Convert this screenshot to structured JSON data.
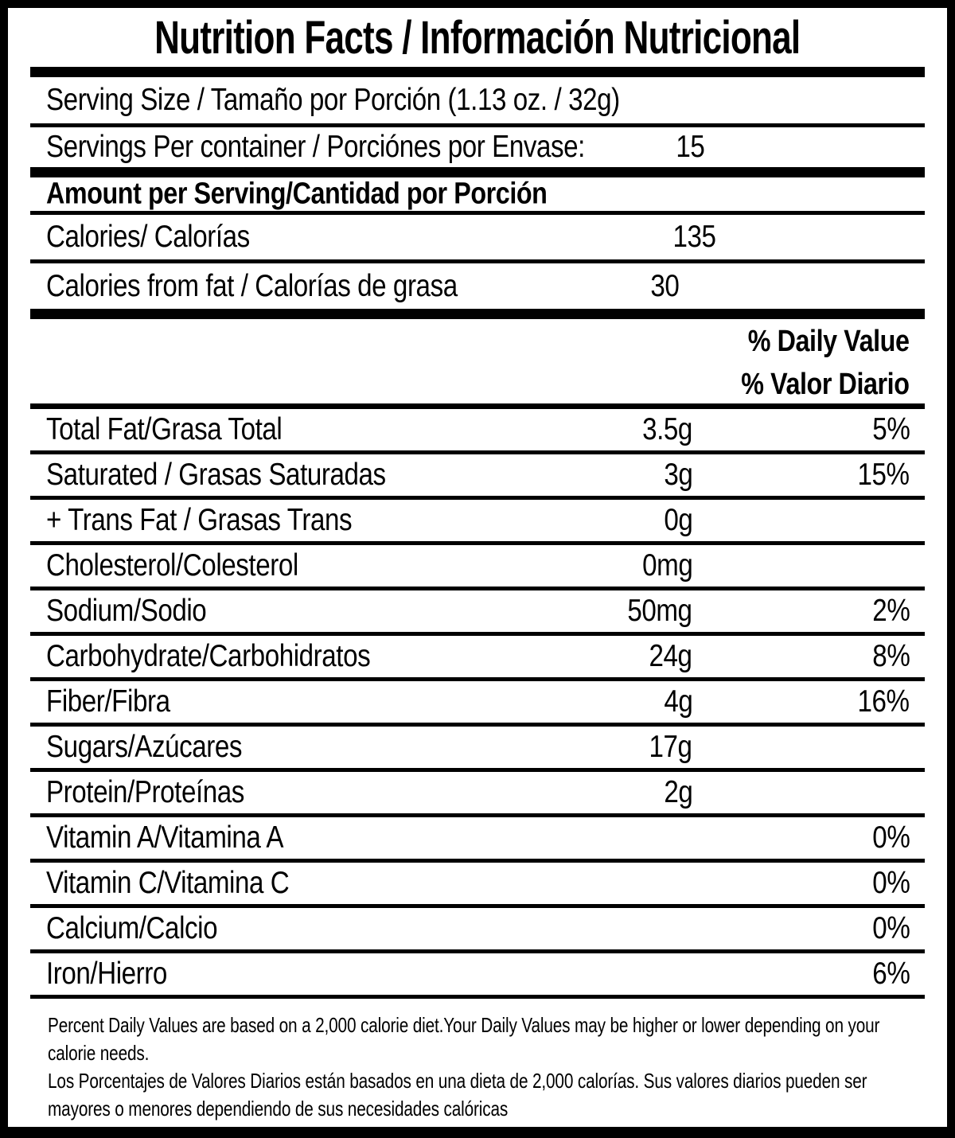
{
  "colors": {
    "ink": "#000000",
    "background": "#ffffff"
  },
  "label": {
    "title": "Nutrition Facts / Información Nutricional",
    "serving_size": "Serving Size / Tamaño por Porción (1.13 oz. / 32g)",
    "servings_per_container": {
      "label": "Servings Per container / Porciónes por Envase:",
      "value": "15"
    },
    "amount_per_serving_header": "Amount per Serving/Cantidad por Porción",
    "calories": {
      "label": "Calories/ Calorías",
      "value": "135"
    },
    "calories_from_fat": {
      "label": "Calories from fat / Calorías de grasa",
      "value": "30"
    },
    "daily_value_header": {
      "line1": "% Daily Value",
      "line2": "% Valor Diario"
    },
    "nutrients": [
      {
        "label": "Total Fat/Grasa Total",
        "amount": "3.5g",
        "dv": "5%"
      },
      {
        "label": "Saturated / Grasas Saturadas",
        "amount": "3g",
        "dv": "15%"
      },
      {
        "label": "+ Trans Fat / Grasas Trans",
        "amount": "0g",
        "dv": ""
      },
      {
        "label": "Cholesterol/Colesterol",
        "amount": "0mg",
        "dv": ""
      },
      {
        "label": "Sodium/Sodio",
        "amount": "50mg",
        "dv": "2%"
      },
      {
        "label": "Carbohydrate/Carbohidratos",
        "amount": "24g",
        "dv": "8%"
      },
      {
        "label": "Fiber/Fibra",
        "amount": "4g",
        "dv": "16%"
      },
      {
        "label": "Sugars/Azúcares",
        "amount": "17g",
        "dv": ""
      },
      {
        "label": "Protein/Proteínas",
        "amount": "2g",
        "dv": ""
      },
      {
        "label": "Vitamin A/Vitamina A",
        "amount": "",
        "dv": "0%"
      },
      {
        "label": "Vitamin C/Vitamina C",
        "amount": "",
        "dv": "0%"
      },
      {
        "label": "Calcium/Calcio",
        "amount": "",
        "dv": "0%"
      },
      {
        "label": "Iron/Hierro",
        "amount": "",
        "dv": "6%"
      }
    ],
    "footnote_en": "Percent Daily Values are based on a 2,000 calorie diet.Your Daily Values may be higher or lower depending on your calorie needs.",
    "footnote_es": "Los Porcentajes de Valores Diarios están basados en una dieta de 2,000 calorías. Sus valores diarios pueden ser mayores o menores dependiendo de sus necesidades calóricas"
  }
}
